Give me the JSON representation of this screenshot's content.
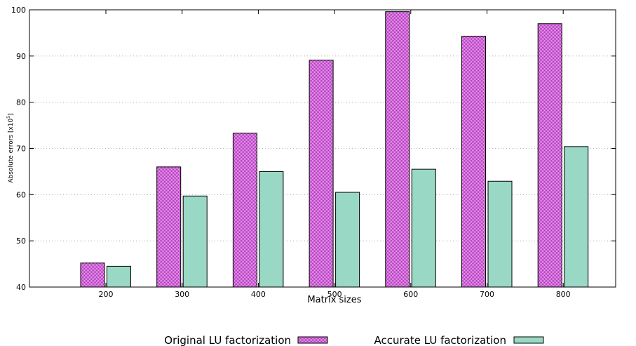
{
  "chart_data": {
    "type": "bar",
    "title": "",
    "xlabel": "Matrix sizes",
    "ylabel_main": "Absolute errors [x10",
    "ylabel_sup": "5",
    "ylabel_end": "]",
    "categories": [
      "200",
      "300",
      "400",
      "500",
      "600",
      "700",
      "800"
    ],
    "series": [
      {
        "name": "Original LU factorization",
        "values": [
          45.2,
          66.0,
          73.3,
          89.1,
          99.6,
          94.3,
          97.0
        ],
        "color": "#c83cd0",
        "pattern": "checkered"
      },
      {
        "name": "Accurate LU factorization",
        "values": [
          44.5,
          59.7,
          65.0,
          60.5,
          65.5,
          62.9,
          70.4
        ],
        "color": "#9ad8c6",
        "pattern": "solid"
      }
    ],
    "ylim": [
      40,
      100
    ],
    "yticks": [
      40,
      50,
      60,
      70,
      80,
      90,
      100
    ],
    "grid": true,
    "legend_position": "bottom"
  }
}
